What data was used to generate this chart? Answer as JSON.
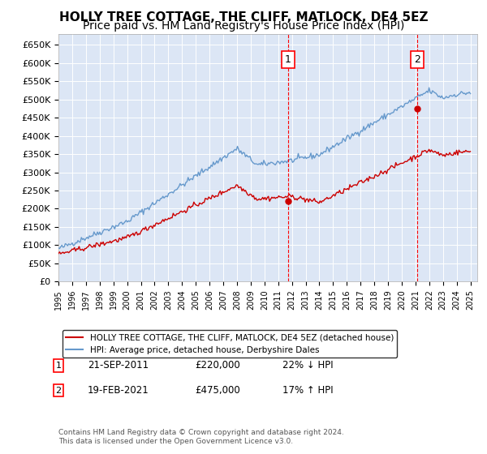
{
  "title": "HOLLY TREE COTTAGE, THE CLIFF, MATLOCK, DE4 5EZ",
  "subtitle": "Price paid vs. HM Land Registry's House Price Index (HPI)",
  "title_fontsize": 11,
  "subtitle_fontsize": 10,
  "background_color": "#dce6f5",
  "plot_bg_color": "#dce6f5",
  "yticks": [
    0,
    50000,
    100000,
    150000,
    200000,
    250000,
    300000,
    350000,
    400000,
    450000,
    500000,
    550000,
    600000,
    650000
  ],
  "xlim_start": 1995.0,
  "xlim_end": 2025.5,
  "ylim_min": 0,
  "ylim_max": 680000,
  "marker1_x": 2011.72,
  "marker1_y": 220000,
  "marker1_label": "1",
  "marker1_date": "21-SEP-2011",
  "marker1_price": "£220,000",
  "marker1_hpi": "22% ↓ HPI",
  "marker2_x": 2021.12,
  "marker2_y": 475000,
  "marker2_label": "2",
  "marker2_date": "19-FEB-2021",
  "marker2_price": "£475,000",
  "marker2_hpi": "17% ↑ HPI",
  "line1_color": "#cc0000",
  "line2_color": "#6699cc",
  "legend_line1": "HOLLY TREE COTTAGE, THE CLIFF, MATLOCK, DE4 5EZ (detached house)",
  "legend_line2": "HPI: Average price, detached house, Derbyshire Dales",
  "footer": "Contains HM Land Registry data © Crown copyright and database right 2024.\nThis data is licensed under the Open Government Licence v3.0."
}
